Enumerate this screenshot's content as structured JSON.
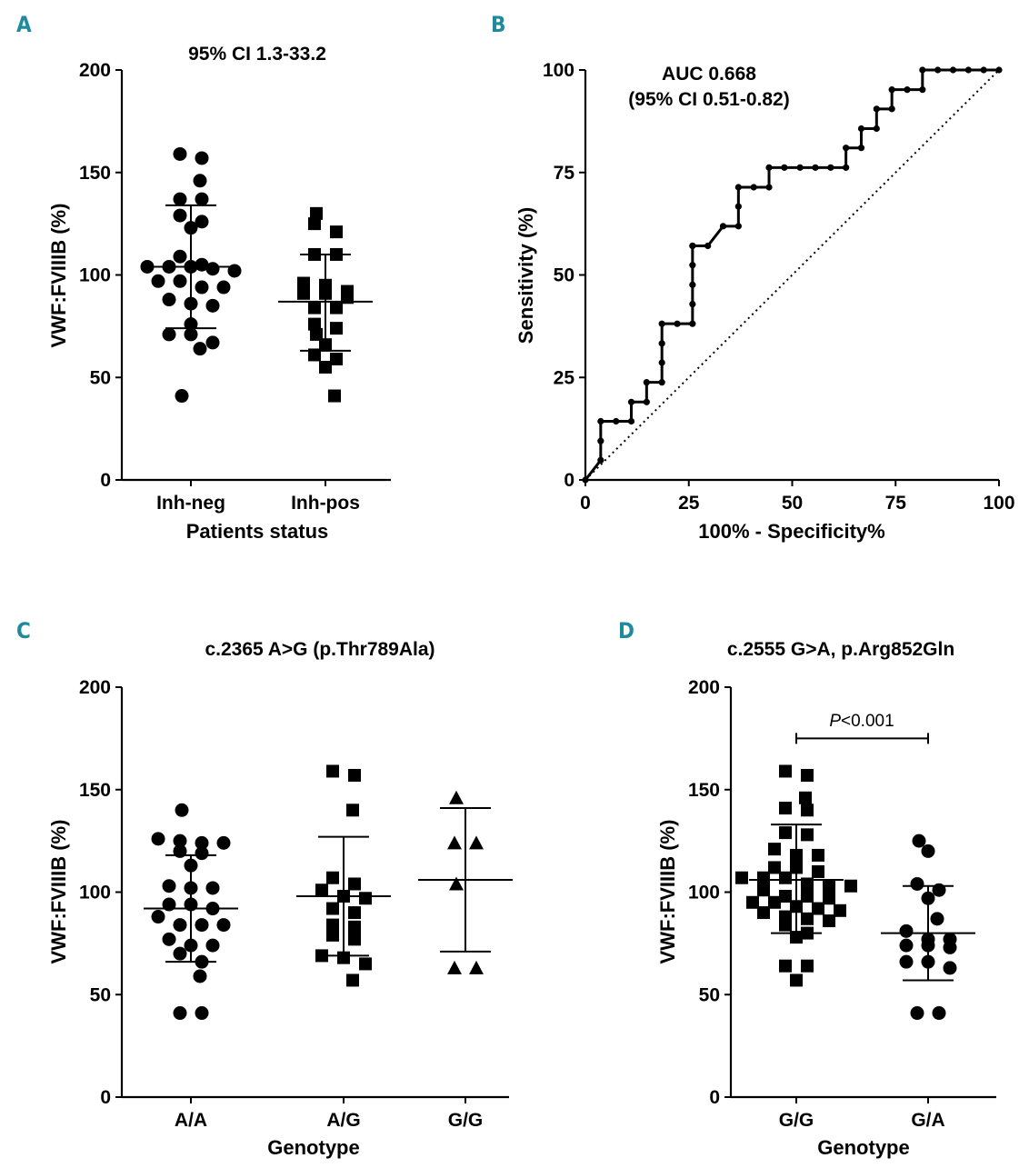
{
  "colors": {
    "panel_label": "#1f8a9e",
    "ink": "#000000"
  },
  "panels": [
    {
      "label": "A",
      "title": "95% CI 1.3-33.2",
      "xlabel": "Patients status",
      "ylabel": "VWF:FVIIIB (%)"
    },
    {
      "label": "B",
      "title_line1": "AUC 0.668",
      "title_line2": "(95% CI 0.51-0.82)",
      "xlabel": "100% - Specificity%",
      "ylabel": "Sensitivity (%)"
    },
    {
      "label": "C",
      "title": "c.2365 A>G (p.Thr789Ala)",
      "xlabel": "Genotype",
      "ylabel": "VWF:FVIIIB (%)"
    },
    {
      "label": "D",
      "title": "c.2555 G>A, p.Arg852Gln",
      "xlabel": "Genotype",
      "ylabel": "VWF:FVIIIB (%)",
      "annotation_italic": "P",
      "annotation_rest": "<0.001"
    }
  ],
  "chart_data": [
    {
      "type": "scatter",
      "title": "95% CI 1.3-33.2",
      "xlabel": "Patients status",
      "ylabel": "VWF:FVIIIB (%)",
      "ylim": [
        0,
        200
      ],
      "yticks": [
        0,
        50,
        100,
        150,
        200
      ],
      "groups": [
        {
          "name": "Inh-neg",
          "marker": "circle",
          "values": [
            159,
            157,
            146,
            137,
            137,
            126,
            129,
            123,
            109,
            104,
            104,
            103,
            104,
            102,
            105,
            97,
            97,
            94,
            94,
            88,
            85,
            86,
            76,
            71,
            71,
            67,
            64,
            41
          ],
          "mean": 104,
          "sd_low": 74,
          "sd_high": 134
        },
        {
          "name": "Inh-pos",
          "marker": "square",
          "values": [
            130,
            125,
            121,
            110,
            110,
            96,
            95,
            92,
            91,
            91,
            89,
            84,
            84,
            76,
            74,
            71,
            66,
            61,
            59,
            55,
            41
          ],
          "mean": 87,
          "sd_low": 63,
          "sd_high": 110
        }
      ]
    },
    {
      "type": "line",
      "title": "AUC 0.668 (95% CI 0.51-0.82)",
      "xlabel": "100% - Specificity%",
      "ylabel": "Sensitivity (%)",
      "xlim": [
        0,
        100
      ],
      "ylim": [
        0,
        100
      ],
      "xticks": [
        0,
        25,
        50,
        75,
        100
      ],
      "yticks": [
        0,
        25,
        50,
        75,
        100
      ],
      "series": [
        {
          "name": "ROC",
          "style": "solid-with-markers",
          "x": [
            0,
            3.7,
            3.7,
            3.7,
            7.4,
            11.1,
            11.1,
            14.8,
            14.8,
            18.5,
            18.5,
            18.5,
            18.5,
            22.2,
            25.9,
            25.9,
            25.9,
            25.9,
            25.9,
            25.9,
            29.6,
            33.3,
            37.0,
            37.0,
            37.0,
            40.7,
            44.4,
            44.4,
            48.1,
            51.9,
            55.6,
            59.3,
            63.0,
            63.0,
            66.7,
            66.7,
            70.4,
            70.4,
            74.1,
            74.1,
            77.8,
            81.5,
            81.5,
            85.2,
            88.9,
            92.6,
            96.3,
            100
          ],
          "y": [
            0,
            4.8,
            9.5,
            14.3,
            14.3,
            14.3,
            19.0,
            19.0,
            23.8,
            23.8,
            28.6,
            33.3,
            38.1,
            38.1,
            38.1,
            42.9,
            47.6,
            52.4,
            57.1,
            57.1,
            57.1,
            61.9,
            61.9,
            66.7,
            71.4,
            71.4,
            71.4,
            76.2,
            76.2,
            76.2,
            76.2,
            76.2,
            76.2,
            81.0,
            81.0,
            85.7,
            85.7,
            90.5,
            90.5,
            95.2,
            95.2,
            95.2,
            100,
            100,
            100,
            100,
            100,
            100
          ]
        },
        {
          "name": "Reference",
          "style": "dotted",
          "x": [
            0,
            100
          ],
          "y": [
            0,
            100
          ]
        }
      ],
      "auc": 0.668
    },
    {
      "type": "scatter",
      "title": "c.2365 A>G (p.Thr789Ala)",
      "xlabel": "Genotype",
      "ylabel": "VWF:FVIIIB (%)",
      "ylim": [
        0,
        200
      ],
      "yticks": [
        0,
        50,
        100,
        150,
        200
      ],
      "groups": [
        {
          "name": "A/A",
          "marker": "circle",
          "values": [
            140,
            126,
            125,
            124,
            124,
            120,
            119,
            113,
            103,
            102,
            102,
            94,
            94,
            92,
            88,
            84,
            84,
            84,
            77,
            74,
            74,
            70,
            66,
            59,
            41,
            41
          ],
          "mean": 92,
          "sd_low": 66,
          "sd_high": 118
        },
        {
          "name": "A/G",
          "marker": "square",
          "values": [
            159,
            157,
            140,
            107,
            104,
            101,
            98,
            97,
            92,
            90,
            84,
            83,
            79,
            77,
            69,
            68,
            65,
            57
          ],
          "mean": 98,
          "sd_low": 69,
          "sd_high": 127
        },
        {
          "name": "G/G",
          "marker": "triangle",
          "values": [
            146,
            124,
            124,
            104,
            63,
            63
          ],
          "mean": 106,
          "sd_low": 71,
          "sd_high": 141
        }
      ]
    },
    {
      "type": "scatter",
      "title": "c.2555 G>A, p.Arg852Gln",
      "xlabel": "Genotype",
      "ylabel": "VWF:FVIIIB (%)",
      "ylim": [
        0,
        200
      ],
      "yticks": [
        0,
        50,
        100,
        150,
        200
      ],
      "annotation": "P<0.001",
      "groups": [
        {
          "name": "G/G",
          "marker": "square",
          "values": [
            159,
            157,
            146,
            141,
            140,
            129,
            128,
            121,
            118,
            118,
            112,
            112,
            110,
            107,
            107,
            107,
            104,
            103,
            103,
            101,
            98,
            98,
            97,
            95,
            95,
            93,
            92,
            91,
            90,
            88,
            87,
            86,
            84,
            80,
            78,
            64,
            64,
            57
          ],
          "mean": 106,
          "sd_low": 80,
          "sd_high": 133
        },
        {
          "name": "G/A",
          "marker": "circle",
          "values": [
            125,
            120,
            104,
            101,
            97,
            87,
            81,
            77,
            77,
            74,
            74,
            73,
            66,
            66,
            63,
            41,
            41
          ],
          "mean": 80,
          "sd_low": 57,
          "sd_high": 103
        }
      ]
    }
  ]
}
